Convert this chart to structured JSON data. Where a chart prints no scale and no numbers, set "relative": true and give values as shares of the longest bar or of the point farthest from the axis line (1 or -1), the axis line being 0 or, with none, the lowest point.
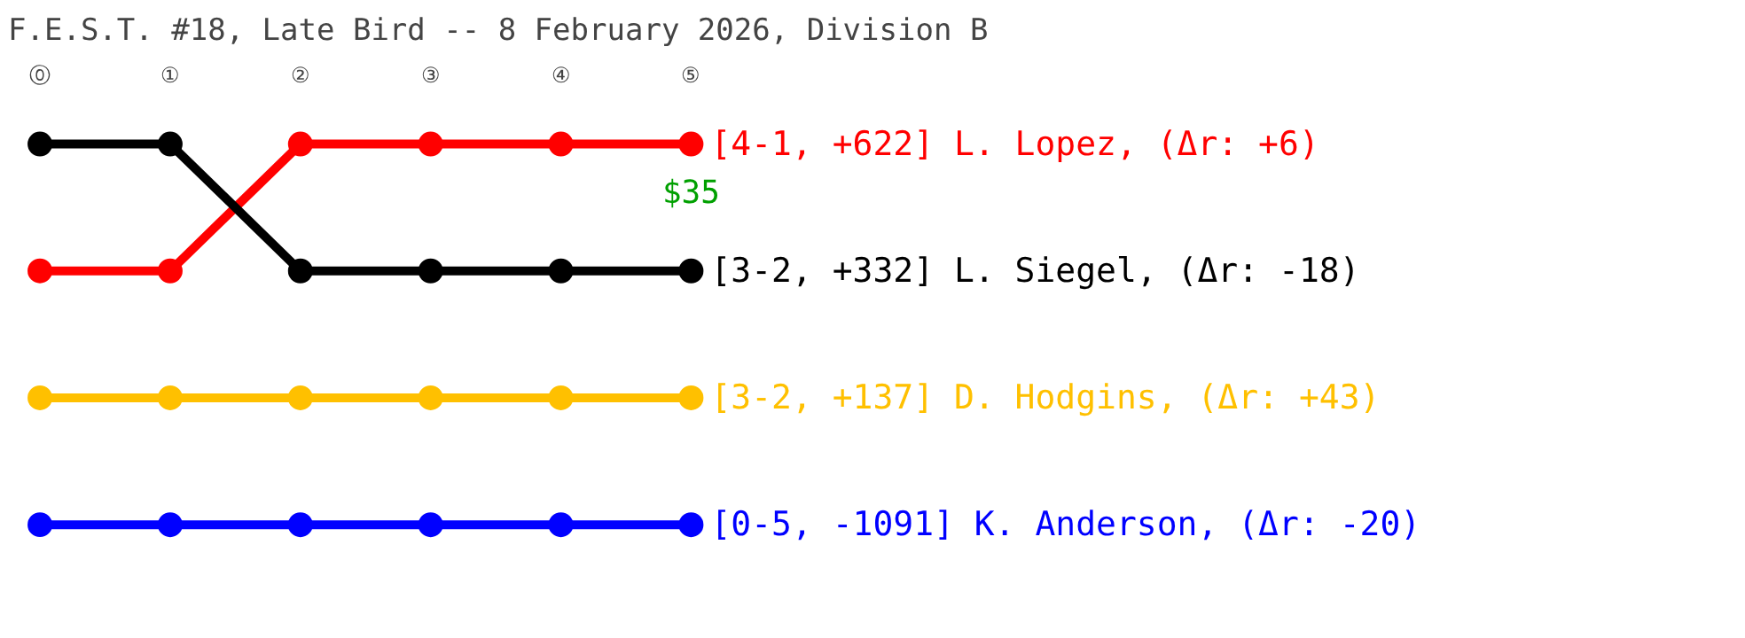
{
  "chart_data": {
    "type": "line",
    "title": "F.E.S.T. #18, Late Bird -- 8 February 2026, Division B",
    "categories": [
      "⓪",
      "①",
      "②",
      "③",
      "④",
      "⑤"
    ],
    "relative": true,
    "marker": "circle",
    "series": [
      {
        "name": "[4-1, +622] L. Lopez, (Δr: +6)",
        "color": "#ff0000",
        "values": [
          0.6667,
          0.6667,
          1,
          1,
          1,
          1
        ]
      },
      {
        "name": "[3-2, +332] L. Siegel, (Δr: -18)",
        "color": "#000000",
        "values": [
          1,
          1,
          0.6667,
          0.6667,
          0.6667,
          0.6667
        ]
      },
      {
        "name": "[3-2, +137] D. Hodgins, (Δr: +43)",
        "color": "#ffc000",
        "values": [
          0.3333,
          0.3333,
          0.3333,
          0.3333,
          0.3333,
          0.3333
        ]
      },
      {
        "name": "[0-5, -1091] K. Anderson, (Δr: -20)",
        "color": "#0000ff",
        "values": [
          0,
          0,
          0,
          0,
          0,
          0
        ]
      }
    ],
    "annotations": [
      {
        "text": "$35",
        "x": "⑤",
        "y": 1
      }
    ]
  }
}
